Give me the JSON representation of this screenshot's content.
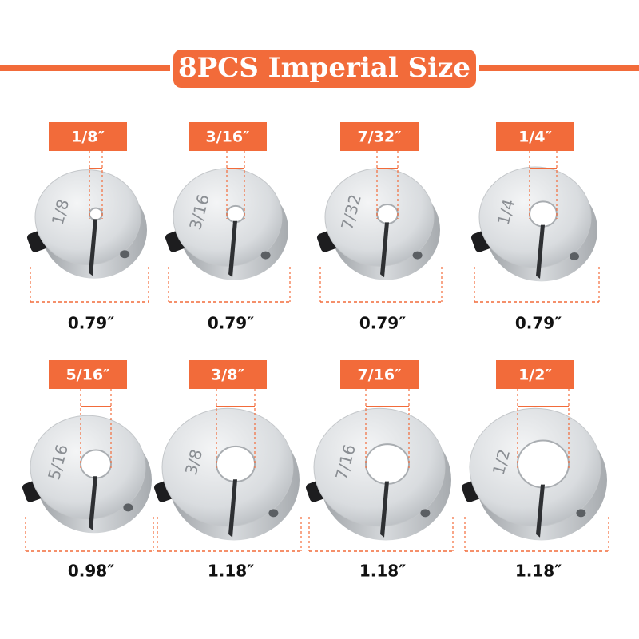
{
  "header": {
    "title": "8PCS Imperial Size"
  },
  "items": [
    {
      "bore": "1/8″",
      "engraving": "1/8",
      "outer": "0.79″"
    },
    {
      "bore": "3/16″",
      "engraving": "3/16",
      "outer": "0.79″"
    },
    {
      "bore": "7/32″",
      "engraving": "7/32",
      "outer": "0.79″"
    },
    {
      "bore": "1/4″",
      "engraving": "1/4",
      "outer": "0.79″"
    },
    {
      "bore": "5/16″",
      "engraving": "5/16",
      "outer": "0.98″"
    },
    {
      "bore": "3/8″",
      "engraving": "3/8",
      "outer": "1.18″"
    },
    {
      "bore": "7/16″",
      "engraving": "7/16",
      "outer": "1.18″"
    },
    {
      "bore": "1/2″",
      "engraving": "1/2",
      "outer": "1.18″"
    }
  ]
}
